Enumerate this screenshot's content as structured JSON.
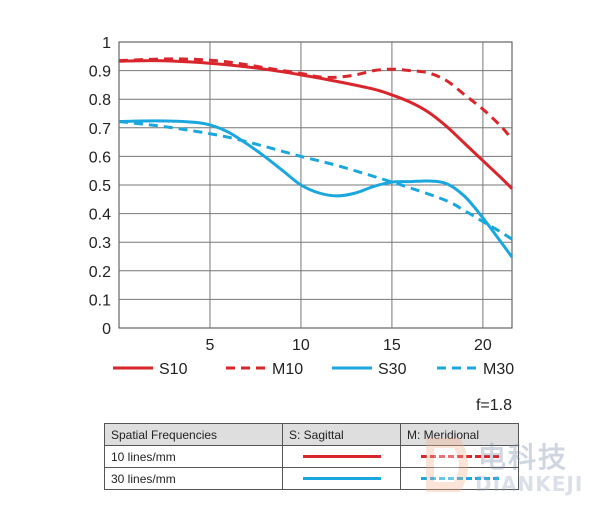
{
  "chart_data": {
    "type": "line",
    "title": "",
    "xlabel": "",
    "ylabel": "",
    "xlim": [
      0,
      21.6
    ],
    "ylim": [
      0,
      1
    ],
    "x_ticks": [
      5,
      10,
      15,
      20
    ],
    "y_ticks": [
      0,
      0.1,
      0.2,
      0.3,
      0.4,
      0.5,
      0.6,
      0.7,
      0.8,
      0.9,
      1
    ],
    "y_tick_labels": [
      "0",
      "0.1",
      "0.2",
      "0.3",
      "0.4",
      "0.5",
      "0.6",
      "0.7",
      "0.8",
      "0.9",
      "1"
    ],
    "grid": true,
    "legend_position": "bottom",
    "aperture_label": "f=1.8",
    "series": [
      {
        "name": "S10",
        "color": "#d9262c",
        "dash": "solid",
        "x": [
          0,
          2,
          4,
          6,
          8,
          10,
          12,
          14,
          15,
          16,
          17,
          18,
          19,
          20,
          21,
          21.6
        ],
        "y": [
          0.933,
          0.935,
          0.93,
          0.92,
          0.905,
          0.885,
          0.862,
          0.835,
          0.815,
          0.79,
          0.755,
          0.705,
          0.645,
          0.585,
          0.525,
          0.487
        ]
      },
      {
        "name": "M10",
        "color": "#d9262c",
        "dash": "dashed",
        "x": [
          0,
          2,
          4,
          6,
          8,
          10,
          11,
          12,
          13,
          14,
          15,
          16,
          17,
          18,
          19,
          20,
          21,
          21.6
        ],
        "y": [
          0.935,
          0.94,
          0.94,
          0.93,
          0.91,
          0.89,
          0.878,
          0.877,
          0.885,
          0.9,
          0.905,
          0.9,
          0.892,
          0.865,
          0.815,
          0.765,
          0.705,
          0.66
        ]
      },
      {
        "name": "S30",
        "color": "#1aa7dd",
        "dash": "solid",
        "x": [
          0,
          2,
          4,
          5,
          6,
          7,
          8,
          9,
          10,
          11,
          12,
          13,
          14,
          15,
          16,
          17,
          18,
          19,
          20,
          21,
          21.6
        ],
        "y": [
          0.722,
          0.724,
          0.72,
          0.71,
          0.685,
          0.645,
          0.6,
          0.55,
          0.5,
          0.472,
          0.462,
          0.472,
          0.495,
          0.51,
          0.512,
          0.514,
          0.505,
          0.46,
          0.385,
          0.3,
          0.248
        ]
      },
      {
        "name": "M30",
        "color": "#1aa7dd",
        "dash": "dashed",
        "x": [
          0,
          2,
          4,
          6,
          8,
          10,
          12,
          14,
          16,
          18,
          19,
          20,
          21,
          21.6
        ],
        "y": [
          0.722,
          0.708,
          0.69,
          0.667,
          0.635,
          0.6,
          0.568,
          0.53,
          0.49,
          0.445,
          0.41,
          0.372,
          0.335,
          0.31
        ]
      }
    ]
  },
  "key_table": {
    "header": {
      "col1": "Spatial Frequencies",
      "col2": "S: Sagittal",
      "col3": "M: Meridional"
    },
    "rows": [
      {
        "label": "10 lines/mm",
        "color": "#d9262c"
      },
      {
        "label": "30 lines/mm",
        "color": "#1aa7dd"
      }
    ]
  },
  "watermark": {
    "text": "电科技",
    "sub": "DIANKEJI"
  }
}
